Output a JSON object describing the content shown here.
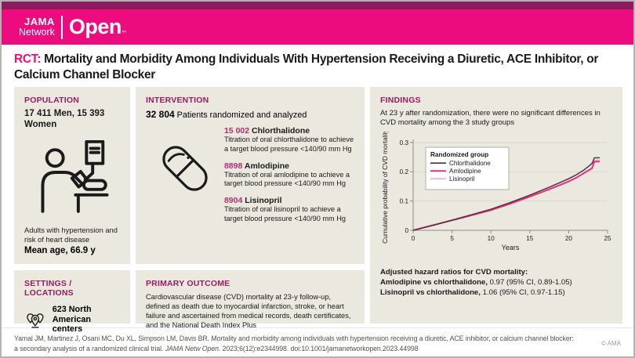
{
  "header": {
    "brand_top": "JAMA",
    "brand_bottom": "Network",
    "brand_product": "Open",
    "trademark": "™"
  },
  "title": {
    "prefix": "RCT:",
    "text": " Mortality and Morbidity Among Individuals With Hypertension Receiving a Diuretic, ACE Inhibitor, or Calcium Channel Blocker"
  },
  "population": {
    "header": "POPULATION",
    "stat": "17 411 Men, 15 393 Women",
    "icon": "patient-blood-pressure-icon",
    "description": "Adults with hypertension and risk of heart disease",
    "mean_age": "Mean age, 66.9 y"
  },
  "intervention": {
    "header": "INTERVENTION",
    "stat_number": "32 804",
    "stat_label": " Patients randomized and analyzed",
    "icon": "pill-capsule-icon",
    "arms": [
      {
        "number": "15 002",
        "name": " Chlorthalidone",
        "description": "Titration of oral chlorthalidone to achieve a target blood pressure <140/90 mm Hg"
      },
      {
        "number": "8898",
        "name": " Amlodipine",
        "description": "Titration of oral amlodipine to achieve a target blood pressure <140/90 mm Hg"
      },
      {
        "number": "8904",
        "name": " Lisinopril",
        "description": "Titration of oral lisinopril to achieve a target blood pressure <140/90 mm Hg"
      }
    ]
  },
  "settings": {
    "header": "SETTINGS / LOCATIONS",
    "icon": "map-pins-icon",
    "text": "623 North American centers"
  },
  "primary_outcome": {
    "header": "PRIMARY OUTCOME",
    "text": "Cardiovascular disease (CVD) mortality at 23-y follow-up, defined as death due to myocardial infarction, stroke, or heart failure and ascertained from medical records, death certificates, and the National Death Index Plus"
  },
  "findings": {
    "header": "FINDINGS",
    "summary": "At 23 y after randomization, there were no significant differences in CVD mortality among the 3 study groups",
    "hazard_title": "Adjusted hazard ratios for CVD mortality:",
    "hazard_lines": [
      {
        "label": "Amlodipine vs chlorthalidone,",
        "value": " 0.97 (95% CI, 0.89-1.05)"
      },
      {
        "label": "Lisinopril vs chlorthalidone,",
        "value": " 1.06 (95% CI, 0.97-1.15)"
      }
    ]
  },
  "chart_data": {
    "type": "line",
    "title": "",
    "xlabel": "Years",
    "ylabel": "Cumulative probability of CVD mortality",
    "xlim": [
      0,
      25
    ],
    "ylim": [
      0,
      0.3
    ],
    "xticks": [
      0,
      5,
      10,
      15,
      20,
      25
    ],
    "yticks": [
      0,
      0.1,
      0.2,
      0.3
    ],
    "grid": true,
    "legend_title": "Randomized group",
    "legend_position": "upper-left",
    "x": [
      0,
      2.5,
      5,
      7.5,
      10,
      12.5,
      15,
      17.5,
      20,
      21,
      22,
      23,
      23.3,
      24
    ],
    "series": [
      {
        "name": "Chlorthalidone",
        "color": "#3c393a",
        "values": [
          0,
          0.017,
          0.035,
          0.053,
          0.072,
          0.095,
          0.12,
          0.147,
          0.176,
          0.19,
          0.207,
          0.228,
          0.248,
          0.248
        ]
      },
      {
        "name": "Amlodipine",
        "color": "#ee2c81",
        "values": [
          0,
          0.017,
          0.034,
          0.051,
          0.069,
          0.091,
          0.115,
          0.14,
          0.167,
          0.18,
          0.196,
          0.212,
          0.235,
          0.235
        ]
      },
      {
        "name": "Lisinopril",
        "color": "#f6a9cb",
        "values": [
          0,
          0.017,
          0.035,
          0.054,
          0.073,
          0.096,
          0.121,
          0.149,
          0.178,
          0.192,
          0.206,
          0.232,
          0.24,
          0.24
        ]
      }
    ]
  },
  "footer": {
    "citation_line1": "Yamal JM, Martinez J, Osani MC, Du XL, Simpson LM, Davis BR. Mortality and morbidity among individuals with hypertension receiving a diuretic, ACE inhibitor, or calcium channel blocker:",
    "citation_line2_before": "a secondary analysis of a randomized clinical trial. ",
    "citation_journal": "JAMA Netw Open",
    "citation_line2_after": ". 2023;6(12):e2344998. doi:10.1001/jamanetworkopen.2023.44998",
    "copyright": "© AMA"
  },
  "colors": {
    "brand_pink": "#ec0c7d",
    "brand_dark_stripe": "#8d1a5e",
    "section_header": "#9e1b60",
    "arm_number": "#b42d74",
    "panel_bg": "#ebe8e0",
    "chlorthalidone_line": "#3c393a",
    "amlodipine_line": "#ee2c81",
    "lisinopril_line": "#f6a9cb"
  }
}
